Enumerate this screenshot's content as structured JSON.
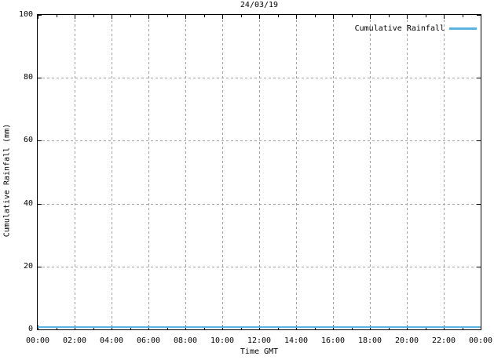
{
  "colors": {
    "line": "#5bb3e2",
    "grid": "#a0a0a0",
    "border": "#000000",
    "background": "#ffffff",
    "text": "#000000"
  },
  "chart_data": {
    "type": "line",
    "title": "24/03/19",
    "xlabel": "Time GMT",
    "ylabel": "Cumulative Rainfall (mm)",
    "x_tick_labels": [
      "00:00",
      "02:00",
      "04:00",
      "06:00",
      "08:00",
      "10:00",
      "12:00",
      "14:00",
      "16:00",
      "18:00",
      "20:00",
      "22:00",
      "00:00"
    ],
    "y_ticks": [
      0,
      20,
      40,
      60,
      80,
      100
    ],
    "y_tick_labels": [
      "0",
      "20",
      "40",
      "60",
      "80",
      "100"
    ],
    "ylim": [
      0,
      100
    ],
    "xlim_hours": [
      0,
      24
    ],
    "minor_x_tick_every_hours": 1,
    "grid": true,
    "grid_style": "dashed",
    "legend_position": "top-right-inside",
    "series": [
      {
        "name": "Cumulative Rainfall",
        "color": "#5bb3e2",
        "x": [
          "00:00",
          "02:00",
          "04:00",
          "06:00",
          "08:00",
          "10:00",
          "12:00",
          "14:00",
          "16:00",
          "18:00",
          "20:00",
          "22:00",
          "00:00"
        ],
        "values": [
          0.5,
          0.5,
          0.5,
          0.5,
          0.5,
          0.5,
          0.5,
          0.5,
          0.5,
          0.5,
          0.5,
          0.5,
          0.5
        ]
      }
    ]
  }
}
